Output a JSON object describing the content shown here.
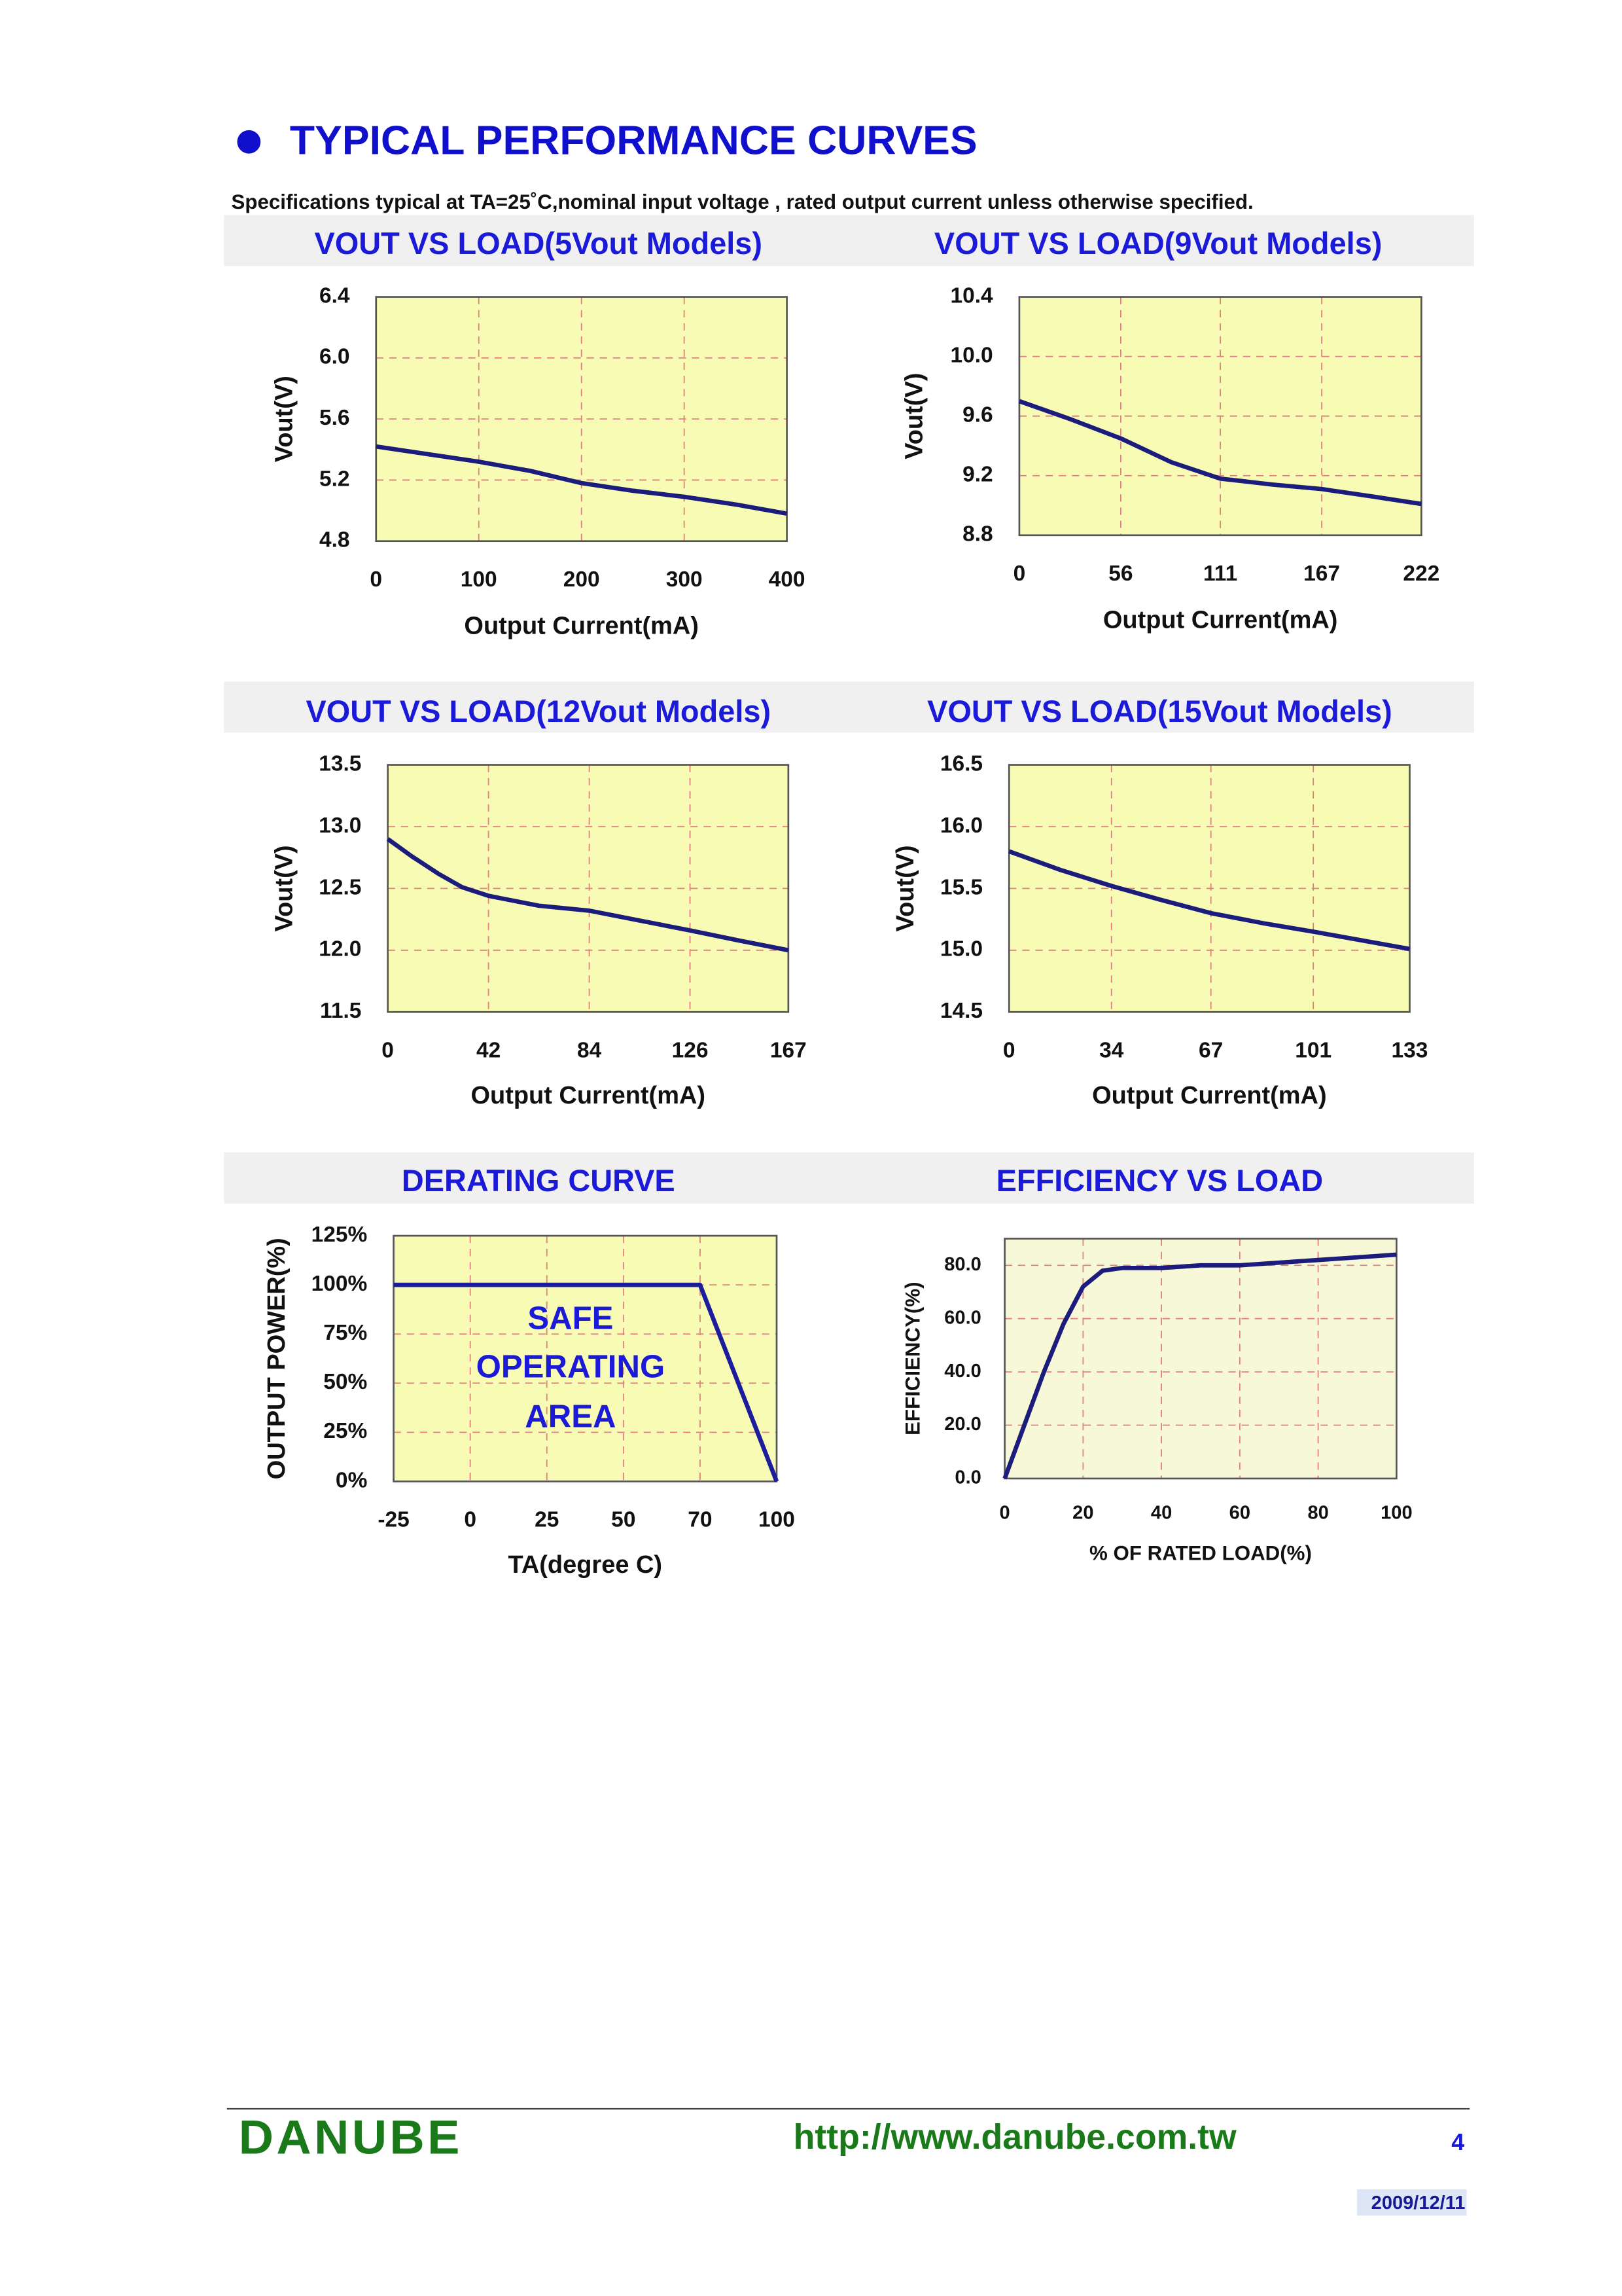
{
  "header": {
    "title": "TYPICAL PERFORMANCE CURVES",
    "subtitle": "Specifications typical at TA=25˚C,nominal input voltage , rated output current unless otherwise specified."
  },
  "chart_data": [
    {
      "type": "line",
      "title": "VOUT VS LOAD(5Vout Models)",
      "x_label": "Output Current(mA)",
      "y_label": "Vout(V)",
      "color": "#1c1c7c",
      "grid": true,
      "x": [
        0,
        50,
        100,
        150,
        200,
        250,
        300,
        350,
        400
      ],
      "values": [
        5.42,
        5.37,
        5.32,
        5.26,
        5.18,
        5.13,
        5.09,
        5.04,
        4.98
      ],
      "xlim": [
        0,
        400
      ],
      "xticks": [
        0,
        100,
        200,
        300,
        400
      ],
      "ylim": [
        4.8,
        6.4
      ],
      "yticks": [
        4.8,
        5.2,
        5.6,
        {
          "value": 6,
          "label": "6.0"
        },
        6.4
      ]
    },
    {
      "type": "line",
      "title": "VOUT VS LOAD(9Vout Models)",
      "x_label": "Output Current(mA)",
      "y_label": "Vout(V)",
      "color": "#1c1c7c",
      "grid": true,
      "x": [
        0,
        28,
        56,
        84,
        111,
        140,
        167,
        195,
        222
      ],
      "values": [
        9.7,
        9.58,
        9.45,
        9.29,
        9.18,
        9.14,
        9.11,
        9.06,
        9.01
      ],
      "xlim": [
        0,
        222
      ],
      "xticks": [
        0,
        56,
        111,
        167,
        222
      ],
      "ylim": [
        8.8,
        10.4
      ],
      "yticks": [
        8.8,
        9.2,
        9.6,
        {
          "value": 10,
          "label": "10.0"
        },
        10.4
      ]
    },
    {
      "type": "line",
      "title": "VOUT VS LOAD(12Vout Models)",
      "x_label": "Output Current(mA)",
      "y_label": "Vout(V)",
      "color": "#1c1c7c",
      "grid": true,
      "x": [
        0,
        10,
        21,
        31,
        42,
        63,
        84,
        105,
        126,
        146,
        167
      ],
      "values": [
        12.9,
        12.76,
        12.62,
        12.51,
        12.44,
        12.36,
        12.32,
        12.24,
        12.16,
        12.08,
        12.0
      ],
      "xlim": [
        0,
        167
      ],
      "xticks": [
        0,
        42,
        84,
        126,
        167
      ],
      "ylim": [
        11.5,
        13.5
      ],
      "yticks": [
        11.5,
        {
          "value": 12,
          "label": "12.0"
        },
        12.5,
        {
          "value": 13,
          "label": "13.0"
        },
        13.5
      ]
    },
    {
      "type": "line",
      "title": "VOUT VS LOAD(15Vout Models)",
      "x_label": "Output Current(mA)",
      "y_label": "Vout(V)",
      "color": "#1c1c7c",
      "grid": true,
      "x": [
        0,
        17,
        34,
        50,
        67,
        84,
        101,
        117,
        133
      ],
      "values": [
        15.8,
        15.65,
        15.52,
        15.41,
        15.3,
        15.22,
        15.15,
        15.08,
        15.01
      ],
      "xlim": [
        0,
        133
      ],
      "xticks": [
        0,
        34,
        67,
        101,
        133
      ],
      "ylim": [
        14.5,
        16.5
      ],
      "yticks": [
        14.5,
        {
          "value": 15,
          "label": "15.0"
        },
        15.5,
        {
          "value": 16,
          "label": "16.0"
        },
        16.5
      ]
    },
    {
      "type": "line",
      "title": "DERATING CURVE",
      "x_label": "TA(degree C)",
      "y_label": "OUTPUT POWER(%)",
      "color": "#1c1c9c",
      "grid": true,
      "categories": [
        "-25",
        "0",
        "25",
        "50",
        "70",
        "100"
      ],
      "values": [
        100,
        100,
        100,
        100,
        100,
        0
      ],
      "ylim": [
        0,
        125
      ],
      "yticks": [
        {
          "value": 0,
          "label": "0%"
        },
        {
          "value": 25,
          "label": "25%"
        },
        {
          "value": 50,
          "label": "50%"
        },
        {
          "value": 75,
          "label": "75%"
        },
        {
          "value": 100,
          "label": "100%"
        },
        {
          "value": 125,
          "label": "125%"
        }
      ],
      "annotations": [
        "SAFE",
        "OPERATING",
        "AREA"
      ]
    },
    {
      "type": "line",
      "title": "EFFICIENCY VS LOAD",
      "x_label": "% OF RATED LOAD(%)",
      "y_label": "EFFICIENCY(%)",
      "color": "#1c1c7c",
      "grid": true,
      "x": [
        0,
        5,
        10,
        15,
        20,
        25,
        30,
        40,
        50,
        60,
        70,
        80,
        90,
        100
      ],
      "values": [
        0,
        20,
        40,
        58,
        72,
        78,
        79,
        79,
        80,
        80,
        81,
        82,
        83,
        84
      ],
      "xlim": [
        0,
        100
      ],
      "xticks": [
        0,
        20,
        40,
        60,
        80,
        100
      ],
      "ylim": [
        0,
        90
      ],
      "yticks": [
        {
          "value": 0,
          "label": "0.0"
        },
        {
          "value": 20,
          "label": "20.0"
        },
        {
          "value": 40,
          "label": "40.0"
        },
        {
          "value": 60,
          "label": "60.0"
        },
        {
          "value": 80,
          "label": "80.0"
        }
      ]
    }
  ],
  "footer": {
    "brand": "DANUBE",
    "url": "http://www.danube.com.tw",
    "page": "4",
    "date": "2009/12/11"
  }
}
